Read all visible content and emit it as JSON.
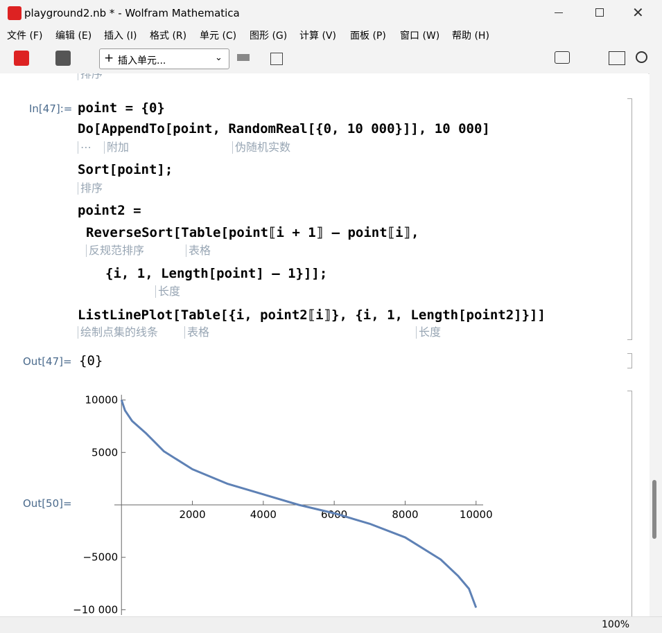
{
  "window": {
    "title": "playground2.nb * - Wolfram Mathematica"
  },
  "menu": [
    "文件 (F)",
    "编辑 (E)",
    "插入 (I)",
    "格式 (R)",
    "单元 (C)",
    "图形 (G)",
    "计算 (V)",
    "面板 (P)",
    "窗口 (W)",
    "帮助 (H)"
  ],
  "toolbar": {
    "insert_cell": "插入单元..."
  },
  "notebook": {
    "top_hint": "排序",
    "input": {
      "label": "In[47]:=",
      "lines": [
        "point = {0}",
        "Do[AppendTo[point, RandomReal[{0, 10 000}]], 10 000]",
        "Sort[point];",
        "point2 =",
        "ReverseSort[Table[point⟦i + 1⟧ – point⟦i⟧,",
        "{i, 1, Length[point] – 1}]];",
        "ListLinePlot[Table[{i, point2⟦i⟧}, {i, 1, Length[point2]}]]"
      ],
      "hints": [
        "⋯",
        "附加",
        "伪随机实数",
        "排序",
        "反规范排序",
        "表格",
        "长度",
        "绘制点集的线条",
        "表格",
        "长度"
      ]
    },
    "outputs": [
      {
        "label": "Out[47]=",
        "text": "{0}"
      },
      {
        "label": "Out[50]="
      }
    ]
  },
  "status": {
    "zoom": "100%"
  },
  "chart_data": {
    "type": "line",
    "x": [
      1,
      100,
      300,
      700,
      1200,
      2000,
      3000,
      4000,
      5000,
      6000,
      7000,
      8000,
      9000,
      9500,
      9800,
      10000
    ],
    "series": [
      {
        "color": "#5e81b5",
        "values": [
          10000,
          9000,
          8000,
          6800,
          5100,
          3400,
          2000,
          1000,
          0,
          -800,
          -1800,
          -3100,
          -5200,
          -6800,
          -8000,
          -9800
        ]
      }
    ],
    "xlim": [
      -200,
      10200
    ],
    "ylim": [
      -10500,
      10500
    ],
    "xticks": [
      2000,
      4000,
      6000,
      8000,
      10000
    ],
    "yticks": [
      {
        "value": -10000,
        "label": "−10 000"
      },
      {
        "value": -5000,
        "label": "−5000"
      },
      5000,
      10000
    ]
  }
}
